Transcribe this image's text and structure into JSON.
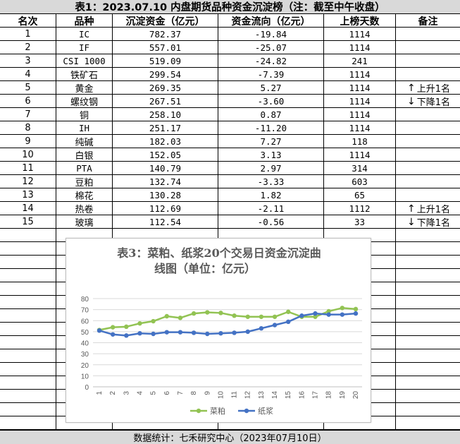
{
  "title": "表1：2023.07.10 内盘期货品种资金沉淀榜（注：截至中午收盘）",
  "headers": [
    "名次",
    "品种",
    "沉淀资金（亿元）",
    "资金流向（亿元）",
    "上榜天数",
    "备注"
  ],
  "rows": [
    {
      "rank": "1",
      "name": "IC",
      "fund": "782.37",
      "flow": "-19.84",
      "days": "1114",
      "note": "",
      "arrow": ""
    },
    {
      "rank": "2",
      "name": "IF",
      "fund": "557.01",
      "flow": "-25.07",
      "days": "1114",
      "note": "",
      "arrow": ""
    },
    {
      "rank": "3",
      "name": "CSI 1000",
      "fund": "519.09",
      "flow": "-24.82",
      "days": "241",
      "note": "",
      "arrow": ""
    },
    {
      "rank": "4",
      "name": "铁矿石",
      "fund": "299.54",
      "flow": "-7.39",
      "days": "1114",
      "note": "",
      "arrow": ""
    },
    {
      "rank": "5",
      "name": "黄金",
      "fund": "269.35",
      "flow": "5.27",
      "days": "1114",
      "note": "上升1名",
      "arrow": "↑"
    },
    {
      "rank": "6",
      "name": "螺纹钢",
      "fund": "267.51",
      "flow": "-3.60",
      "days": "1114",
      "note": "下降1名",
      "arrow": "↓"
    },
    {
      "rank": "7",
      "name": "铜",
      "fund": "258.10",
      "flow": "0.87",
      "days": "1114",
      "note": "",
      "arrow": ""
    },
    {
      "rank": "8",
      "name": "IH",
      "fund": "251.17",
      "flow": "-11.20",
      "days": "1114",
      "note": "",
      "arrow": ""
    },
    {
      "rank": "9",
      "name": "纯碱",
      "fund": "182.03",
      "flow": "7.27",
      "days": "118",
      "note": "",
      "arrow": ""
    },
    {
      "rank": "10",
      "name": "白银",
      "fund": "152.05",
      "flow": "3.13",
      "days": "1114",
      "note": "",
      "arrow": ""
    },
    {
      "rank": "11",
      "name": "PTA",
      "fund": "140.79",
      "flow": "2.97",
      "days": "314",
      "note": "",
      "arrow": ""
    },
    {
      "rank": "12",
      "name": "豆粕",
      "fund": "132.74",
      "flow": "-3.33",
      "days": "603",
      "note": "",
      "arrow": ""
    },
    {
      "rank": "13",
      "name": "棉花",
      "fund": "130.28",
      "flow": "1.82",
      "days": "65",
      "note": "",
      "arrow": ""
    },
    {
      "rank": "14",
      "name": "热卷",
      "fund": "112.69",
      "flow": "-2.11",
      "days": "1112",
      "note": "上升1名",
      "arrow": "↑"
    },
    {
      "rank": "15",
      "name": "玻璃",
      "fund": "112.54",
      "flow": "-0.56",
      "days": "33",
      "note": "下降1名",
      "arrow": "↓"
    }
  ],
  "footer": "数据统计：七禾研究中心（2023年07月10日）",
  "chart_data": {
    "type": "line",
    "title_line1": "表3：菜粕、纸浆20个交易日资金沉淀曲",
    "title_line2": "线图（单位：亿元）",
    "x": [
      "1",
      "2",
      "3",
      "4",
      "5",
      "6",
      "7",
      "8",
      "9",
      "10",
      "11",
      "12",
      "13",
      "14",
      "15",
      "16",
      "17",
      "18",
      "19",
      "20"
    ],
    "ylim": [
      0,
      80
    ],
    "yticks": [
      "0",
      "10",
      "20",
      "30",
      "40",
      "50",
      "60",
      "70",
      "80"
    ],
    "grid": true,
    "legend": "bottom",
    "series": [
      {
        "name": "菜粕",
        "color": "#92c353",
        "values": [
          51.5,
          54,
          54.5,
          57.5,
          59.5,
          64,
          62.5,
          66.5,
          67.5,
          67,
          64.5,
          63.5,
          63.5,
          63.5,
          68,
          63.5,
          63.5,
          68.5,
          71.5,
          70.5
        ]
      },
      {
        "name": "纸浆",
        "color": "#4472c4",
        "values": [
          51,
          47.5,
          46.5,
          48.5,
          48,
          49.5,
          49.5,
          49,
          48,
          48.5,
          49,
          50,
          53,
          56,
          59,
          64.5,
          66.5,
          65.5,
          65.5,
          66.5
        ]
      }
    ]
  }
}
